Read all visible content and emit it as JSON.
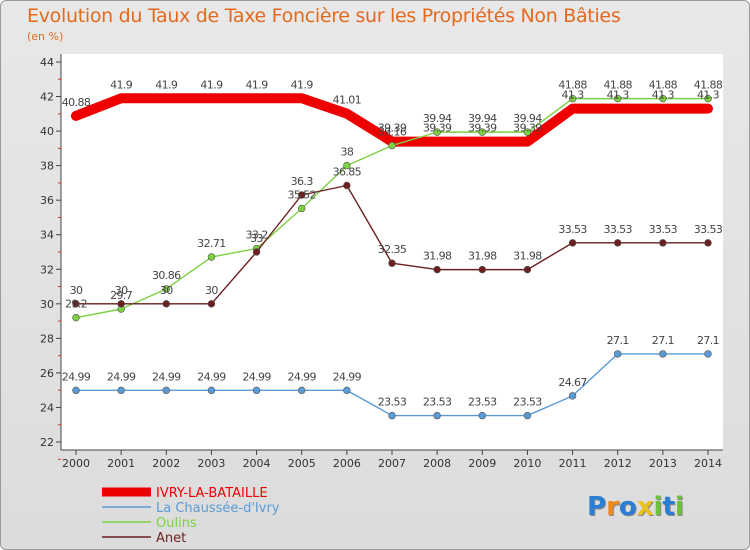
{
  "header": {
    "title": "Evolution du Taux de Taxe Foncière sur les Propriétés Non Bâties",
    "subtitle": "(en %)"
  },
  "logo": {
    "text": "Proxiti",
    "letters": [
      "P",
      "r",
      "o",
      "x",
      "i",
      "t",
      "i"
    ],
    "colors": [
      "#2a7fd4",
      "#f08a1e",
      "#2a7fd4",
      "#e8c21a",
      "#6cc13b",
      "#2a7fd4",
      "#6cc13b"
    ]
  },
  "chart_data": {
    "type": "line",
    "title": "Evolution du Taux de Taxe Foncière sur les Propriétés Non Bâties",
    "ylabel": "(en %)",
    "xlabel": "",
    "ylim": [
      22,
      44
    ],
    "yticks": [
      22,
      24,
      26,
      28,
      30,
      32,
      34,
      36,
      38,
      40,
      42,
      44
    ],
    "grid": false,
    "legend_position": "bottom-left",
    "x": [
      "2000",
      "2001",
      "2002",
      "2003",
      "2004",
      "2005",
      "2006",
      "2007",
      "2008",
      "2009",
      "2010",
      "2011",
      "2012",
      "2013",
      "2014"
    ],
    "series": [
      {
        "name": "IVRY-LA-BATAILLE",
        "color": "#ee0000",
        "thick": true,
        "values": [
          40.88,
          41.9,
          41.9,
          41.9,
          41.9,
          41.9,
          41.01,
          39.39,
          39.39,
          39.39,
          39.39,
          41.3,
          41.3,
          41.3,
          41.3
        ],
        "labels": [
          "40.88",
          "41.9",
          "41.9",
          "41.9",
          "41.9",
          "41.9",
          "41.01",
          "39.39",
          "39.39",
          "39.39",
          "39.39",
          "41.3",
          "41.3",
          "41.3",
          "41.3"
        ]
      },
      {
        "name": "La Chaussée-d'Ivry",
        "color": "#5b9bd5",
        "thick": false,
        "values": [
          24.99,
          24.99,
          24.99,
          24.99,
          24.99,
          24.99,
          24.99,
          23.53,
          23.53,
          23.53,
          23.53,
          24.67,
          27.1,
          27.1,
          27.1
        ],
        "labels": [
          "24.99",
          "24.99",
          "24.99",
          "24.99",
          "24.99",
          "24.99",
          "24.99",
          "23.53",
          "23.53",
          "23.53",
          "23.53",
          "24.67",
          "27.1",
          "27.1",
          "27.1"
        ]
      },
      {
        "name": "Oulins",
        "color": "#7cd141",
        "thick": false,
        "values": [
          29.2,
          29.7,
          30.86,
          32.71,
          33.2,
          35.52,
          38,
          39.16,
          39.94,
          39.94,
          39.94,
          41.88,
          41.88,
          41.88,
          41.88
        ],
        "labels": [
          "29.2",
          "29.7",
          "30.86",
          "32.71",
          "33.2",
          "35.52",
          "38",
          "39.16",
          "39.94",
          "39.94",
          "39.94",
          "41.88",
          "41.88",
          "41.88",
          "41.88"
        ]
      },
      {
        "name": "Anet",
        "color": "#6b1f1f",
        "thick": false,
        "values": [
          30,
          30,
          30,
          30,
          33,
          36.3,
          36.85,
          32.35,
          31.98,
          31.98,
          31.98,
          33.53,
          33.53,
          33.53,
          33.53
        ],
        "labels": [
          "30",
          "30",
          "30",
          "30",
          "33",
          "36.3",
          "36.85",
          "32.35",
          "31.98",
          "31.98",
          "31.98",
          "33.53",
          "33.53",
          "33.53",
          "33.53"
        ]
      }
    ]
  }
}
